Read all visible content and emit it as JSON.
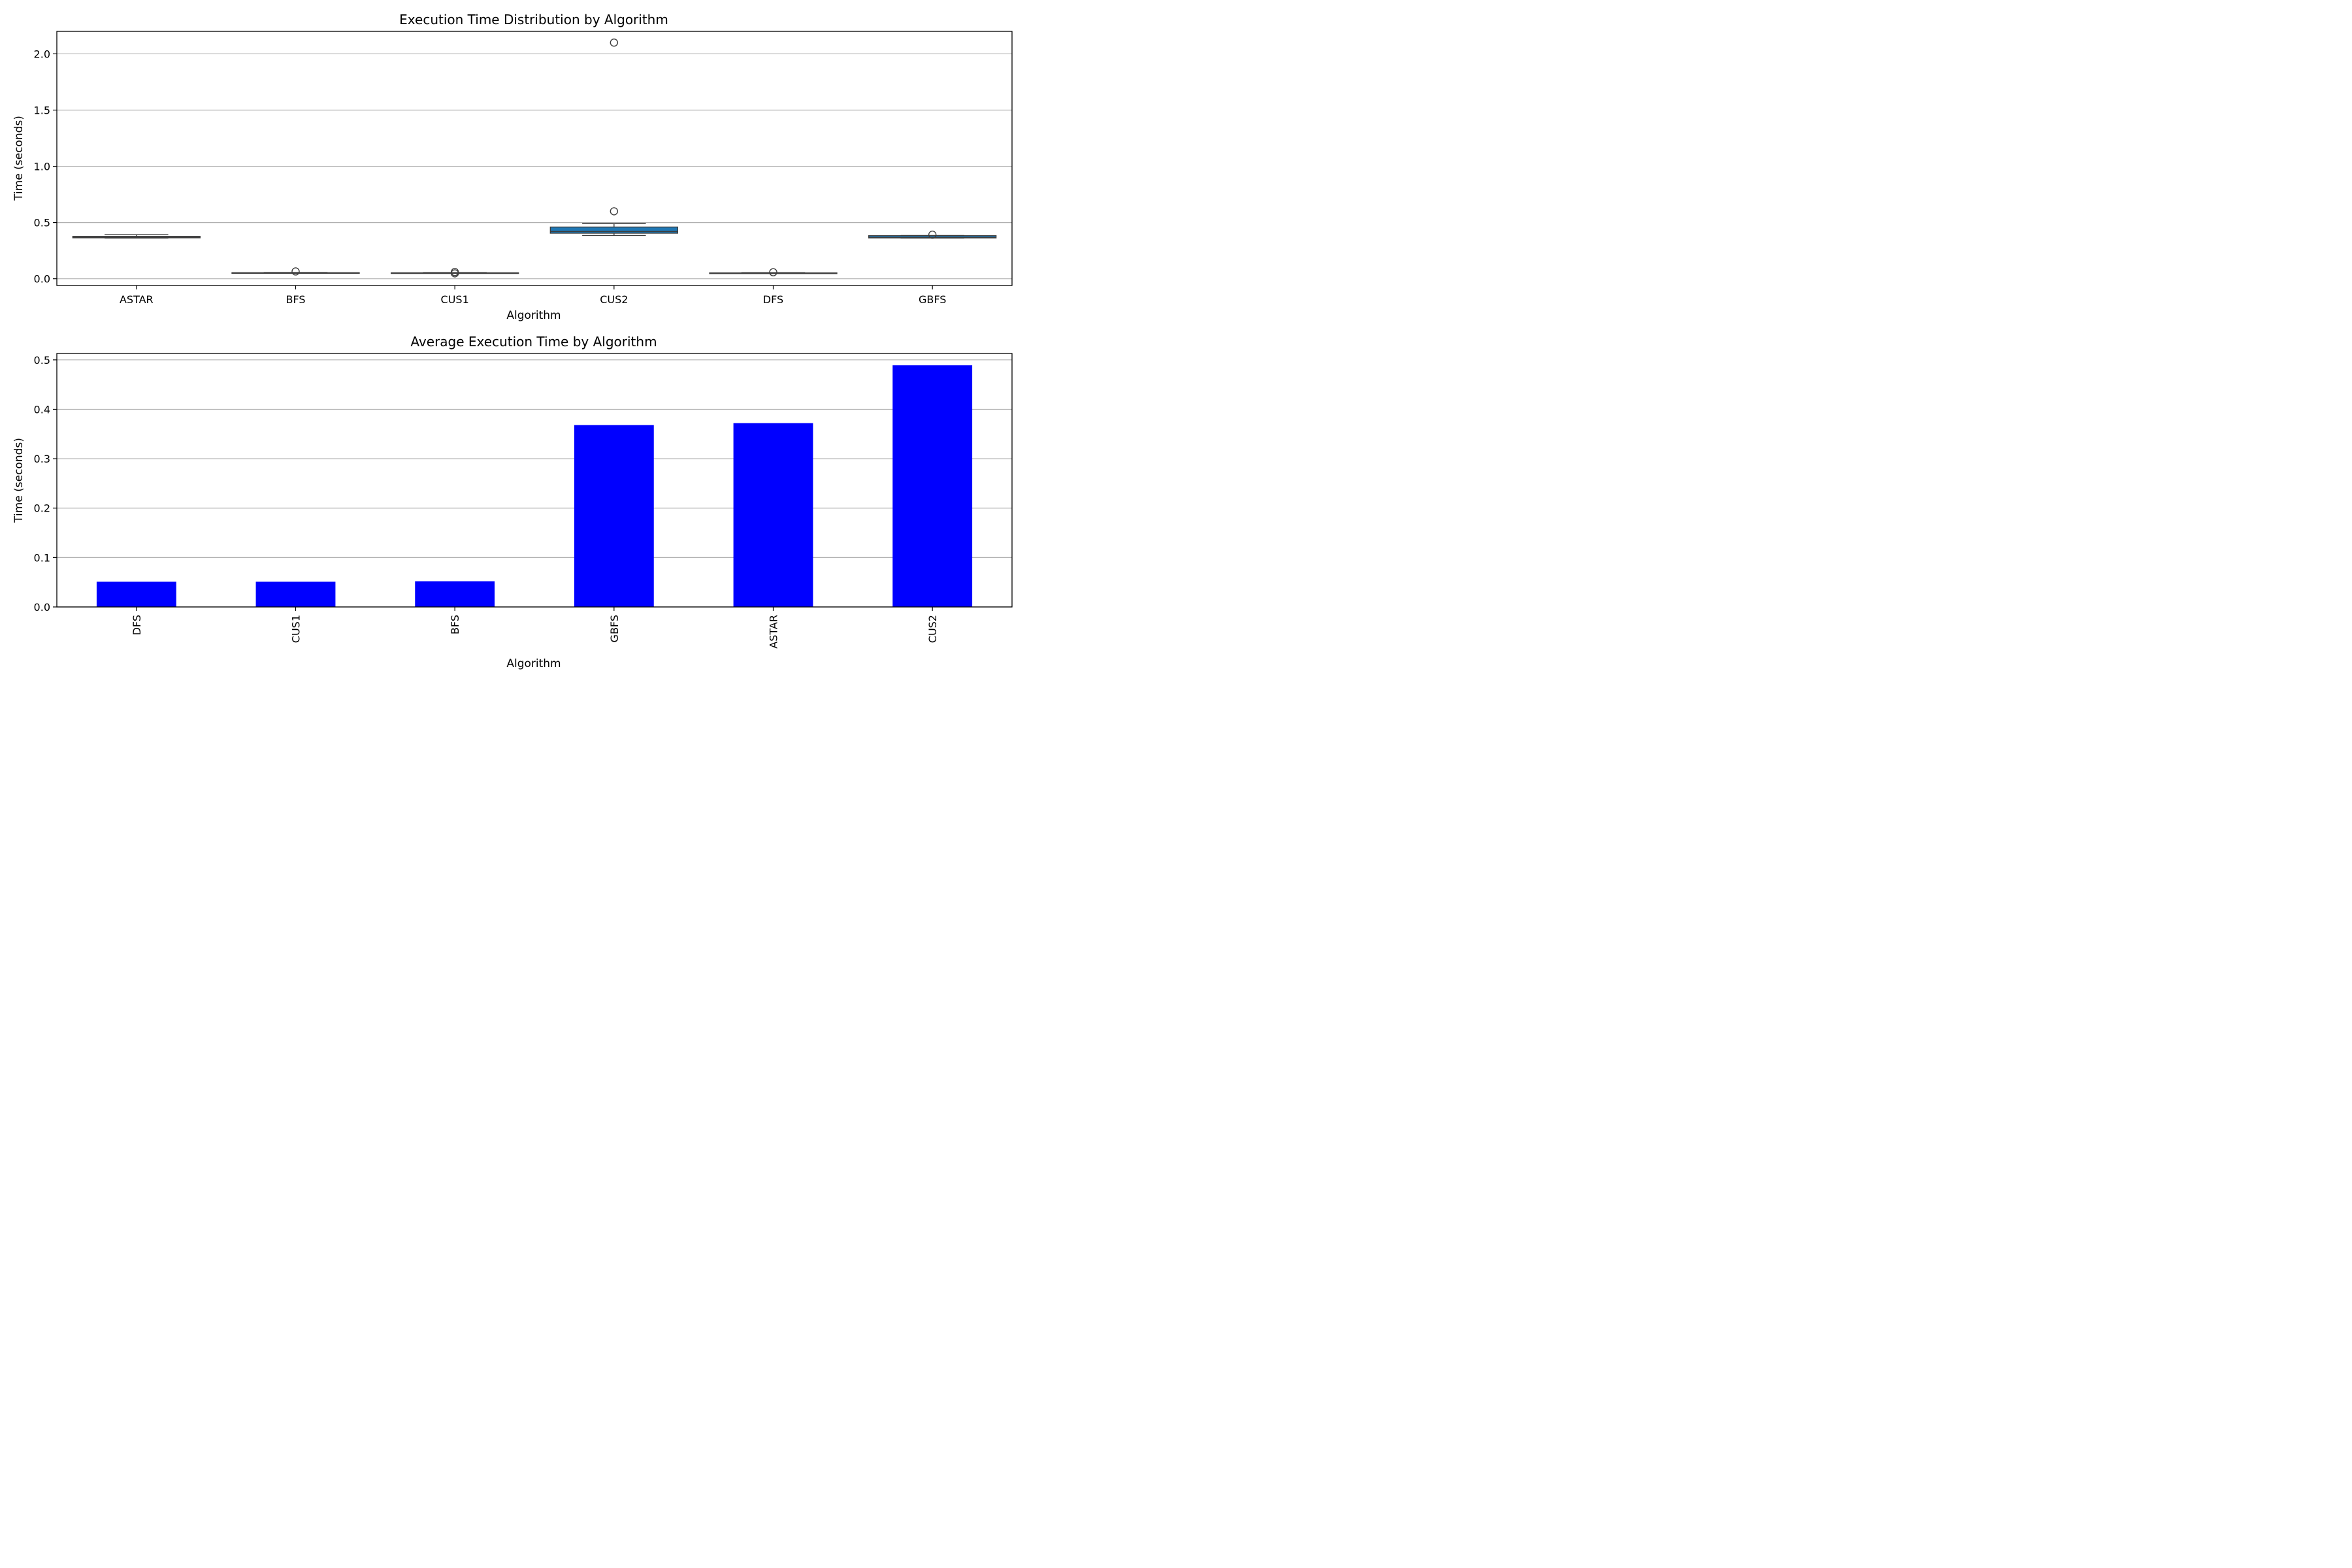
{
  "chart_data": [
    {
      "type": "box",
      "title": "Execution Time Distribution by Algorithm",
      "xlabel": "Algorithm",
      "ylabel": "Time (seconds)",
      "ylim": [
        -0.06,
        2.2
      ],
      "yticks": [
        0.0,
        0.5,
        1.0,
        1.5,
        2.0
      ],
      "ytick_labels": [
        "0.0",
        "0.5",
        "1.0",
        "1.5",
        "2.0"
      ],
      "grid": "y",
      "box_color": "#1f77b4",
      "categories": [
        "ASTAR",
        "BFS",
        "CUS1",
        "CUS2",
        "DFS",
        "GBFS"
      ],
      "boxes": [
        {
          "category": "ASTAR",
          "whislo": 0.362,
          "q1": 0.364,
          "median": 0.37,
          "q3": 0.377,
          "whishi": 0.392,
          "fliers": []
        },
        {
          "category": "BFS",
          "whislo": 0.049,
          "q1": 0.05,
          "median": 0.052,
          "q3": 0.054,
          "whishi": 0.056,
          "fliers": [
            0.065
          ]
        },
        {
          "category": "CUS1",
          "whislo": 0.049,
          "q1": 0.05,
          "median": 0.051,
          "q3": 0.053,
          "whishi": 0.055,
          "fliers": [
            0.06,
            0.048
          ]
        },
        {
          "category": "CUS2",
          "whislo": 0.385,
          "q1": 0.405,
          "median": 0.42,
          "q3": 0.46,
          "whishi": 0.49,
          "fliers": [
            2.1,
            0.6
          ]
        },
        {
          "category": "DFS",
          "whislo": 0.049,
          "q1": 0.05,
          "median": 0.051,
          "q3": 0.052,
          "whishi": 0.054,
          "fliers": [
            0.058
          ]
        },
        {
          "category": "GBFS",
          "whislo": 0.362,
          "q1": 0.363,
          "median": 0.367,
          "q3": 0.383,
          "whishi": 0.385,
          "fliers": [
            0.392
          ]
        }
      ]
    },
    {
      "type": "bar",
      "title": "Average Execution Time by Algorithm",
      "xlabel": "Algorithm",
      "ylabel": "Time (seconds)",
      "ylim": [
        0.0,
        0.513
      ],
      "yticks": [
        0.0,
        0.1,
        0.2,
        0.3,
        0.4,
        0.5
      ],
      "ytick_labels": [
        "0.0",
        "0.1",
        "0.2",
        "0.3",
        "0.4",
        "0.5"
      ],
      "grid": "y",
      "bar_color": "#0000ff",
      "categories": [
        "DFS",
        "CUS1",
        "BFS",
        "GBFS",
        "ASTAR",
        "CUS2"
      ],
      "values": [
        0.051,
        0.051,
        0.052,
        0.368,
        0.372,
        0.489
      ]
    }
  ]
}
